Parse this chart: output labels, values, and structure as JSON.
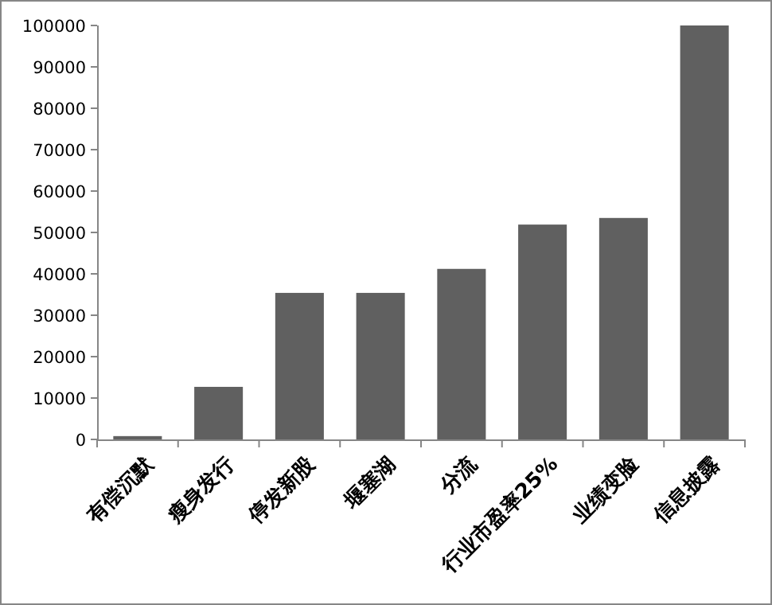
{
  "chart_data": {
    "type": "bar",
    "categories": [
      "有偿沉默",
      "瘦身发行",
      "停发新股",
      "堰塞湖",
      "分流",
      "行业市盈率25%",
      "业绩变脸",
      "信息披露"
    ],
    "values": [
      800,
      12700,
      35400,
      35400,
      41200,
      51900,
      53500,
      100000
    ],
    "color": "#606060",
    "ylim": [
      0,
      100000
    ],
    "yticks": [
      0,
      10000,
      20000,
      30000,
      40000,
      50000,
      60000,
      70000,
      80000,
      90000,
      100000
    ],
    "grid": false
  }
}
